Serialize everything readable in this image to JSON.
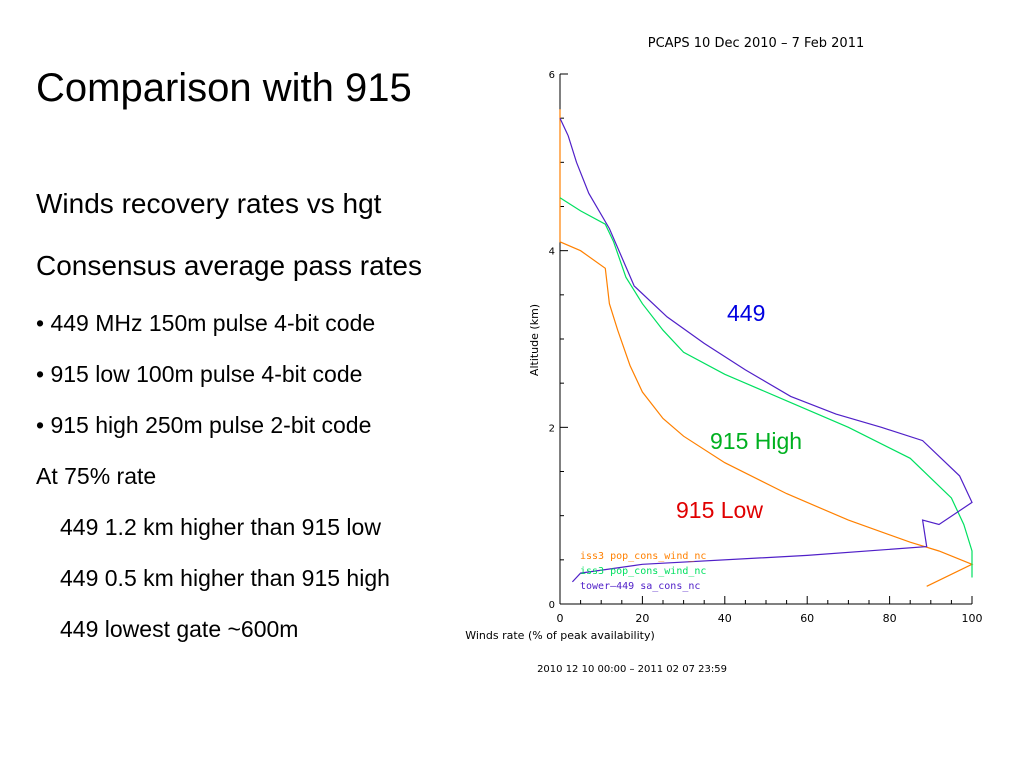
{
  "slide": {
    "title": "Comparison with 915",
    "subtitle1": "Winds recovery rates vs hgt",
    "subtitle2": "Consensus average pass rates",
    "bullets": [
      "• 449 MHz  150m pulse 4-bit code",
      "• 915 low  100m pulse 4-bit code",
      "• 915 high 250m pulse 2-bit code"
    ],
    "at_label": "At 75% rate",
    "findings": [
      "449 1.2 km higher than 915 low",
      "449 0.5 km higher than 915 high",
      "449 lowest gate ~600m"
    ]
  },
  "chart_data": {
    "type": "line",
    "title": "PCAPS 10 Dec 2010 –  7 Feb 2011",
    "footer": "2010 12 10 00:00 – 2011 02 07 23:59",
    "xlabel": "Winds rate (% of peak availability)",
    "ylabel": "Altitude (km)",
    "xlim": [
      0,
      100
    ],
    "ylim": [
      0,
      6
    ],
    "xticks": [
      "0",
      "20",
      "40",
      "60",
      "80",
      "100"
    ],
    "yticks": [
      "0",
      "2",
      "4",
      "6"
    ],
    "grid": false,
    "legend_position": "bottom-left",
    "series": [
      {
        "name": "iss3 pop_cons_wind_nc",
        "annotation": "915 Low",
        "color": "#ff8000",
        "points": [
          [
            0,
            5.6
          ],
          [
            0,
            4.1
          ],
          [
            5,
            4.0
          ],
          [
            11,
            3.8
          ],
          [
            12,
            3.4
          ],
          [
            14,
            3.1
          ],
          [
            17,
            2.7
          ],
          [
            20,
            2.4
          ],
          [
            25,
            2.1
          ],
          [
            30,
            1.9
          ],
          [
            40,
            1.6
          ],
          [
            55,
            1.25
          ],
          [
            70,
            0.95
          ],
          [
            85,
            0.7
          ],
          [
            92,
            0.6
          ],
          [
            100,
            0.45
          ],
          [
            89,
            0.2
          ]
        ]
      },
      {
        "name": "iss3 pop_cons_wind_nc",
        "annotation": "915 High",
        "color": "#00e060",
        "points": [
          [
            0,
            4.6
          ],
          [
            5,
            4.45
          ],
          [
            11,
            4.3
          ],
          [
            13,
            4.1
          ],
          [
            16,
            3.7
          ],
          [
            20,
            3.4
          ],
          [
            25,
            3.1
          ],
          [
            30,
            2.85
          ],
          [
            40,
            2.6
          ],
          [
            55,
            2.3
          ],
          [
            70,
            2.0
          ],
          [
            85,
            1.65
          ],
          [
            95,
            1.2
          ],
          [
            98,
            0.9
          ],
          [
            100,
            0.6
          ],
          [
            100,
            0.3
          ]
        ]
      },
      {
        "name": "tower–449 sa_cons_nc",
        "annotation": "449",
        "color": "#5020c8",
        "points": [
          [
            0,
            5.5
          ],
          [
            2,
            5.3
          ],
          [
            4,
            5.0
          ],
          [
            7,
            4.65
          ],
          [
            12,
            4.25
          ],
          [
            18,
            3.6
          ],
          [
            26,
            3.25
          ],
          [
            35,
            2.95
          ],
          [
            45,
            2.65
          ],
          [
            56,
            2.35
          ],
          [
            67,
            2.15
          ],
          [
            78,
            2.0
          ],
          [
            88,
            1.85
          ],
          [
            97,
            1.45
          ],
          [
            100,
            1.15
          ],
          [
            92,
            0.9
          ],
          [
            88,
            0.95
          ],
          [
            89,
            0.65
          ],
          [
            60,
            0.55
          ],
          [
            20,
            0.45
          ],
          [
            5,
            0.35
          ],
          [
            3,
            0.25
          ]
        ]
      }
    ],
    "annotation_colors": [
      "#e00000",
      "#00b020",
      "#0000e0"
    ]
  }
}
